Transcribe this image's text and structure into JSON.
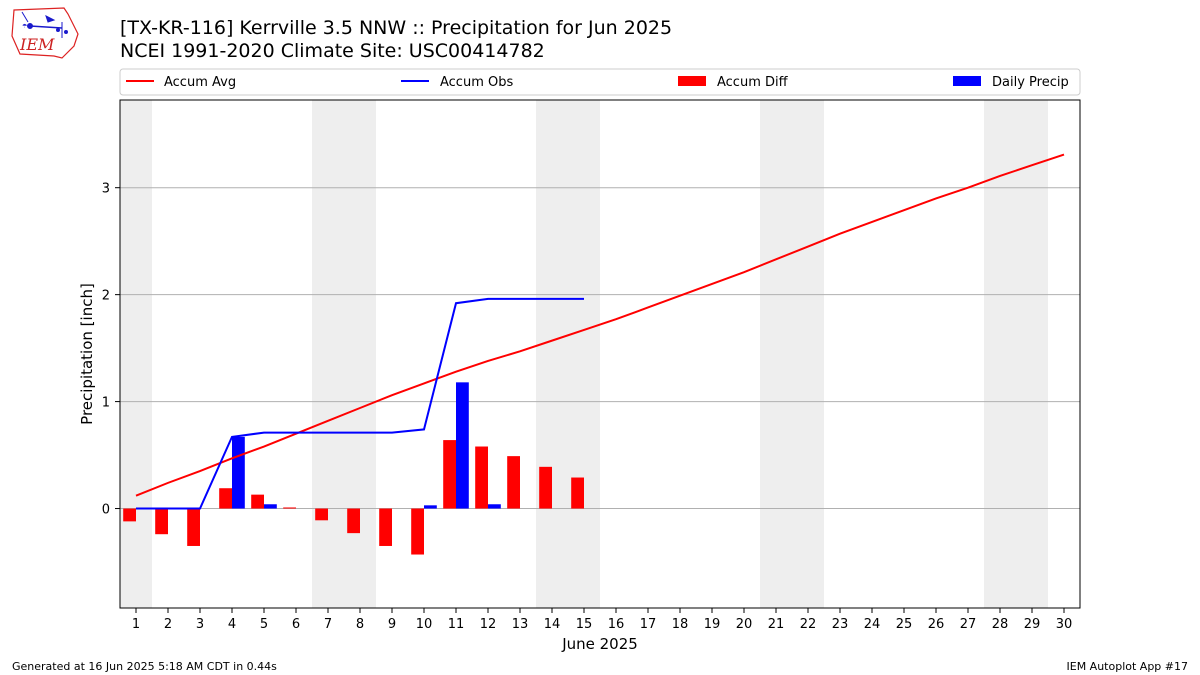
{
  "header": {
    "title_line1": "[TX-KR-116] Kerrville 3.5 NNW :: Precipitation for Jun 2025",
    "title_line2": "NCEI 1991-2020 Climate Site: USC00414782",
    "logo_text": "IEM"
  },
  "footer": {
    "generated": "Generated at 16 Jun 2025 5:18 AM CDT in 0.44s",
    "app": "IEM Autoplot App #17"
  },
  "colors": {
    "accum_avg": "#ff0000",
    "accum_obs": "#0000ff",
    "accum_diff": "#ff0000",
    "daily_precip": "#0000ff",
    "weekend_shade": "#eeeeee",
    "grid": "#b0b0b0"
  },
  "chart_data": {
    "type": "bar",
    "xlabel": "June 2025",
    "ylabel": "Precipitation [inch]",
    "xlim": [
      0.5,
      30.5
    ],
    "ylim": [
      -0.93,
      3.82
    ],
    "x_ticks": [
      1,
      2,
      3,
      4,
      5,
      6,
      7,
      8,
      9,
      10,
      11,
      12,
      13,
      14,
      15,
      16,
      17,
      18,
      19,
      20,
      21,
      22,
      23,
      24,
      25,
      26,
      27,
      28,
      29,
      30
    ],
    "y_ticks": [
      0,
      1,
      2,
      3
    ],
    "grid": "y",
    "legend_position": "top",
    "legend": [
      "Accum Avg",
      "Accum Obs",
      "Accum Diff",
      "Daily Precip"
    ],
    "weekend_spans": [
      [
        0.5,
        1.5
      ],
      [
        6.5,
        8.5
      ],
      [
        13.5,
        15.5
      ],
      [
        20.5,
        22.5
      ],
      [
        27.5,
        29.5
      ]
    ],
    "series": [
      {
        "name": "Accum Avg",
        "type": "line",
        "x": [
          1,
          2,
          3,
          4,
          5,
          6,
          7,
          8,
          9,
          10,
          11,
          12,
          13,
          14,
          15,
          16,
          17,
          18,
          19,
          20,
          21,
          22,
          23,
          24,
          25,
          26,
          27,
          28,
          29,
          30
        ],
        "values": [
          0.12,
          0.24,
          0.35,
          0.47,
          0.58,
          0.7,
          0.82,
          0.94,
          1.06,
          1.17,
          1.28,
          1.38,
          1.47,
          1.57,
          1.67,
          1.77,
          1.88,
          1.99,
          2.1,
          2.21,
          2.33,
          2.45,
          2.57,
          2.68,
          2.79,
          2.9,
          3.0,
          3.11,
          3.21,
          3.31
        ]
      },
      {
        "name": "Accum Obs",
        "type": "line",
        "x": [
          1,
          2,
          3,
          4,
          5,
          6,
          7,
          8,
          9,
          10,
          11,
          12,
          13,
          14,
          15
        ],
        "values": [
          0,
          0,
          0,
          0.67,
          0.71,
          0.71,
          0.71,
          0.71,
          0.71,
          0.74,
          1.92,
          1.96,
          1.96,
          1.96,
          1.96
        ]
      },
      {
        "name": "Accum Diff",
        "type": "bar",
        "x": [
          1,
          2,
          3,
          4,
          5,
          6,
          7,
          8,
          9,
          10,
          11,
          12,
          13,
          14,
          15
        ],
        "values": [
          -0.12,
          -0.24,
          -0.35,
          0.19,
          0.13,
          0.01,
          -0.11,
          -0.23,
          -0.35,
          -0.43,
          0.64,
          0.58,
          0.49,
          0.39,
          0.29
        ]
      },
      {
        "name": "Daily Precip",
        "type": "bar",
        "x": [
          1,
          2,
          3,
          4,
          5,
          6,
          7,
          8,
          9,
          10,
          11,
          12,
          13,
          14,
          15
        ],
        "values": [
          0,
          0,
          0,
          0.67,
          0.04,
          0,
          0,
          0,
          0,
          0.03,
          1.18,
          0.04,
          0,
          0,
          0
        ]
      }
    ]
  }
}
